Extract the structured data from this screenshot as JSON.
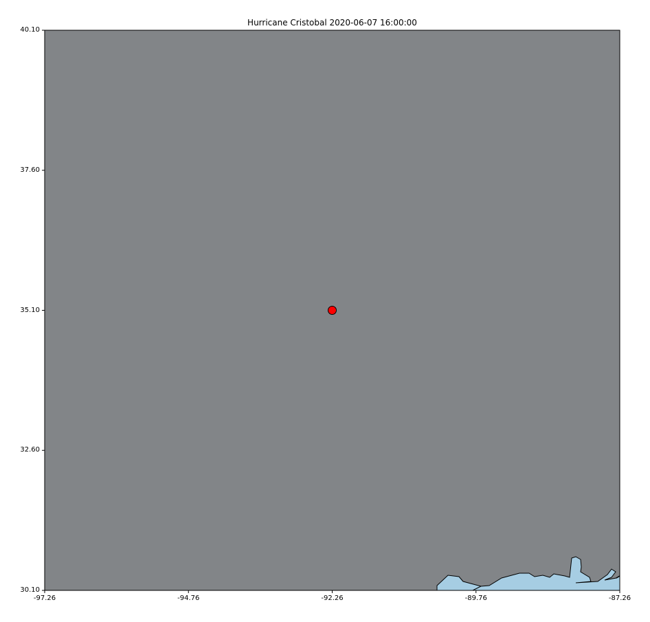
{
  "title": "Hurricane Cristobal 2020-06-07 16:00:00",
  "colors": {
    "land": "#828588",
    "water": "#a6cde3",
    "marker": "#ff0000",
    "coast": "#000000"
  },
  "chart_data": {
    "type": "scatter",
    "title": "Hurricane Cristobal 2020-06-07 16:00:00",
    "xlabel": "",
    "ylabel": "",
    "xlim": [
      -97.26,
      -87.26
    ],
    "ylim": [
      30.1,
      40.1
    ],
    "xticks": [
      "-97.26",
      "-94.76",
      "-92.26",
      "-89.76",
      "-87.26"
    ],
    "yticks": [
      "40.10",
      "37.60",
      "35.10",
      "32.60",
      "30.10"
    ],
    "points": [
      {
        "x": -92.26,
        "y": 35.1
      }
    ],
    "grid": false,
    "legend": "none"
  }
}
